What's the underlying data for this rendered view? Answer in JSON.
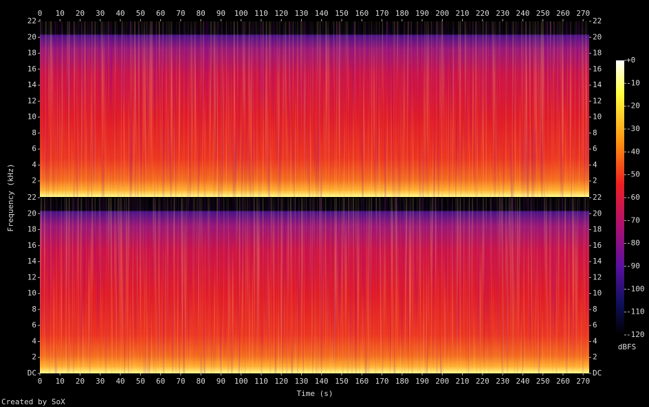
{
  "chart_data": [
    {
      "type": "spectrogram",
      "ylabel": "Frequency (kHz)",
      "xlim": [
        0,
        273
      ],
      "xticks": [
        0,
        10,
        20,
        30,
        40,
        50,
        60,
        70,
        80,
        90,
        100,
        110,
        120,
        130,
        140,
        150,
        160,
        170,
        180,
        190,
        200,
        210,
        220,
        230,
        240,
        250,
        260,
        270
      ],
      "ylim": [
        0,
        22
      ],
      "yticks": [
        2,
        4,
        6,
        8,
        10,
        12,
        14,
        16,
        18,
        20,
        22
      ],
      "colorbar": {
        "label": "dBFS",
        "lim": [
          -120,
          0
        ],
        "ticks": [
          {
            "value": 0,
            "label": "+0"
          },
          -10,
          -20,
          -30,
          -40,
          -50,
          -60,
          -70,
          -80,
          -90,
          -100,
          -110,
          -120
        ]
      }
    },
    {
      "type": "spectrogram",
      "xlabel": "Time (s)",
      "xlim": [
        0,
        273
      ],
      "xticks": [
        0,
        10,
        20,
        30,
        40,
        50,
        60,
        70,
        80,
        90,
        100,
        110,
        120,
        130,
        140,
        150,
        160,
        170,
        180,
        190,
        200,
        210,
        220,
        230,
        240,
        250,
        260,
        270
      ],
      "ylim": [
        0,
        22
      ],
      "yticks": [
        {
          "value": 0,
          "label": "DC"
        },
        2,
        4,
        6,
        8,
        10,
        12,
        14,
        16,
        18,
        20,
        22
      ]
    }
  ],
  "footer": "Created by SoX"
}
